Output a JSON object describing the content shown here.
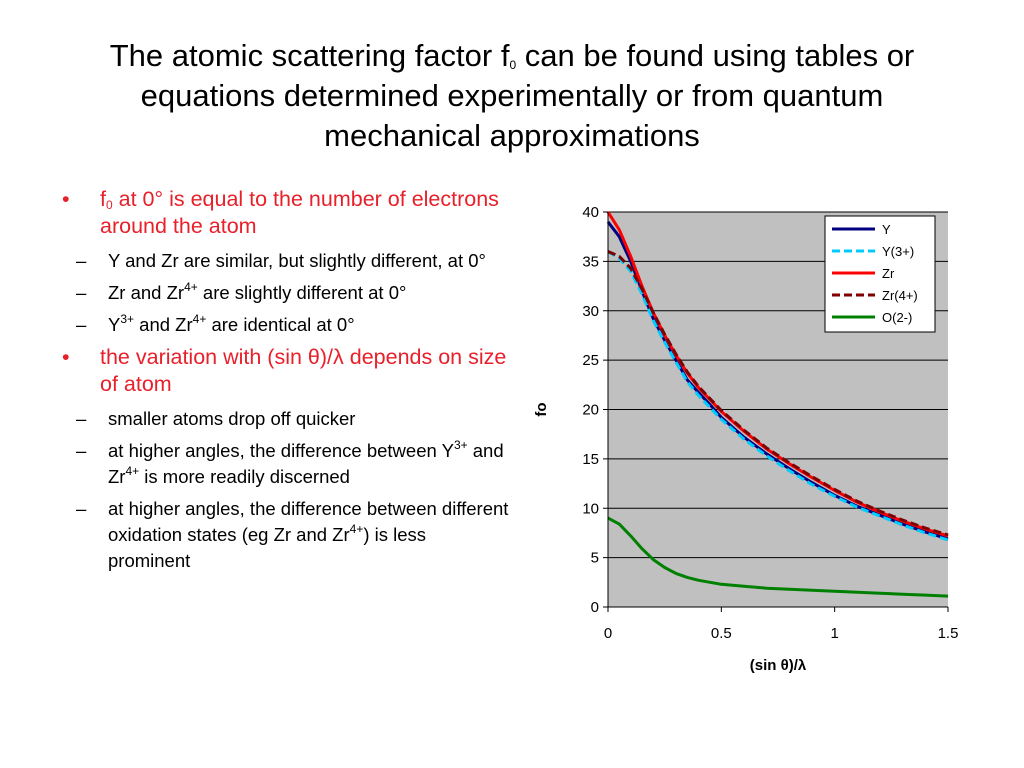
{
  "slide": {
    "title": {
      "part1": "The atomic scattering factor f",
      "sub": "0",
      "part2": " can be found using tables or",
      "line2": "equations determined experimentally or from quantum",
      "line3": "mechanical approximations"
    },
    "bullets": {
      "b1": {
        "mark": "•",
        "f": "f",
        "sub": "0",
        "text": " at 0° is equal to the number of electrons around the atom",
        "subs": {
          "s1": "Y and Zr are similar, but slightly different, at 0°",
          "s2a": "Zr and Zr",
          "s2sup": "4+",
          "s2b": " are slightly different at 0°",
          "s3a": "Y",
          "s3sup1": "3+",
          "s3b": " and Zr",
          "s3sup2": "4+",
          "s3c": " are identical at 0°"
        }
      },
      "b2": {
        "mark": "•",
        "text": "the variation with (sin θ)/λ depends on size of atom",
        "subs": {
          "s1": "smaller atoms drop off quicker",
          "s2a": "at higher angles, the difference between Y",
          "s2sup1": "3+",
          "s2b": " and Zr",
          "s2sup2": "4+",
          "s2c": " is more readily discerned",
          "s3a": "at higher angles, the difference between different oxidation states (eg Zr and Zr",
          "s3sup": "4+",
          "s3b": ") is less prominent"
        }
      },
      "dash": "–"
    }
  },
  "chart_data": {
    "type": "line",
    "xlabel": "(sin θ)/λ",
    "ylabel": "fo",
    "xlim": [
      0,
      1.5
    ],
    "ylim": [
      0,
      40
    ],
    "xticks": [
      "0",
      "0.5",
      "1",
      "1.5"
    ],
    "yticks": [
      "0",
      "5",
      "10",
      "15",
      "20",
      "25",
      "30",
      "35",
      "40"
    ],
    "grid": "horizontal",
    "legend_position": "top-right",
    "background": "#c0c0c0",
    "x": [
      0,
      0.05,
      0.1,
      0.15,
      0.2,
      0.25,
      0.3,
      0.35,
      0.4,
      0.45,
      0.5,
      0.6,
      0.7,
      0.8,
      0.9,
      1.0,
      1.1,
      1.2,
      1.3,
      1.4,
      1.5
    ],
    "series": [
      {
        "name": "Y",
        "color": "#000080",
        "dash": "solid",
        "values": [
          39,
          37.5,
          35,
          32,
          29.2,
          27,
          25,
          23,
          21.7,
          20.5,
          19.2,
          17.2,
          15.5,
          14,
          12.6,
          11.3,
          10.2,
          9.3,
          8.4,
          7.6,
          6.9
        ]
      },
      {
        "name": "Y(3+)",
        "color": "#00ccff",
        "dash": "dashed",
        "values": [
          36,
          35.3,
          34,
          31.7,
          29,
          26.8,
          24.8,
          22.8,
          21.4,
          20.2,
          19,
          17,
          15.3,
          13.8,
          12.4,
          11.2,
          10.1,
          9.2,
          8.3,
          7.5,
          6.8
        ]
      },
      {
        "name": "Zr",
        "color": "#ff0000",
        "dash": "solid",
        "values": [
          40,
          38.2,
          35.5,
          32.5,
          29.8,
          27.5,
          25.5,
          23.7,
          22.2,
          21,
          19.8,
          17.8,
          16,
          14.5,
          13.1,
          11.8,
          10.6,
          9.6,
          8.7,
          7.9,
          7.2
        ]
      },
      {
        "name": "Zr(4+)",
        "color": "#800000",
        "dash": "dashed",
        "values": [
          36,
          35.5,
          34.3,
          32.2,
          29.8,
          27.6,
          25.6,
          23.8,
          22.3,
          21.1,
          19.9,
          17.9,
          16.1,
          14.6,
          13.2,
          11.9,
          10.7,
          9.7,
          8.8,
          8,
          7.3
        ]
      },
      {
        "name": "O(2-)",
        "color": "#008000",
        "dash": "solid",
        "values": [
          9,
          8.4,
          7.2,
          5.9,
          4.8,
          4,
          3.4,
          3,
          2.7,
          2.5,
          2.3,
          2.1,
          1.9,
          1.8,
          1.7,
          1.6,
          1.5,
          1.4,
          1.3,
          1.2,
          1.1
        ]
      }
    ]
  }
}
